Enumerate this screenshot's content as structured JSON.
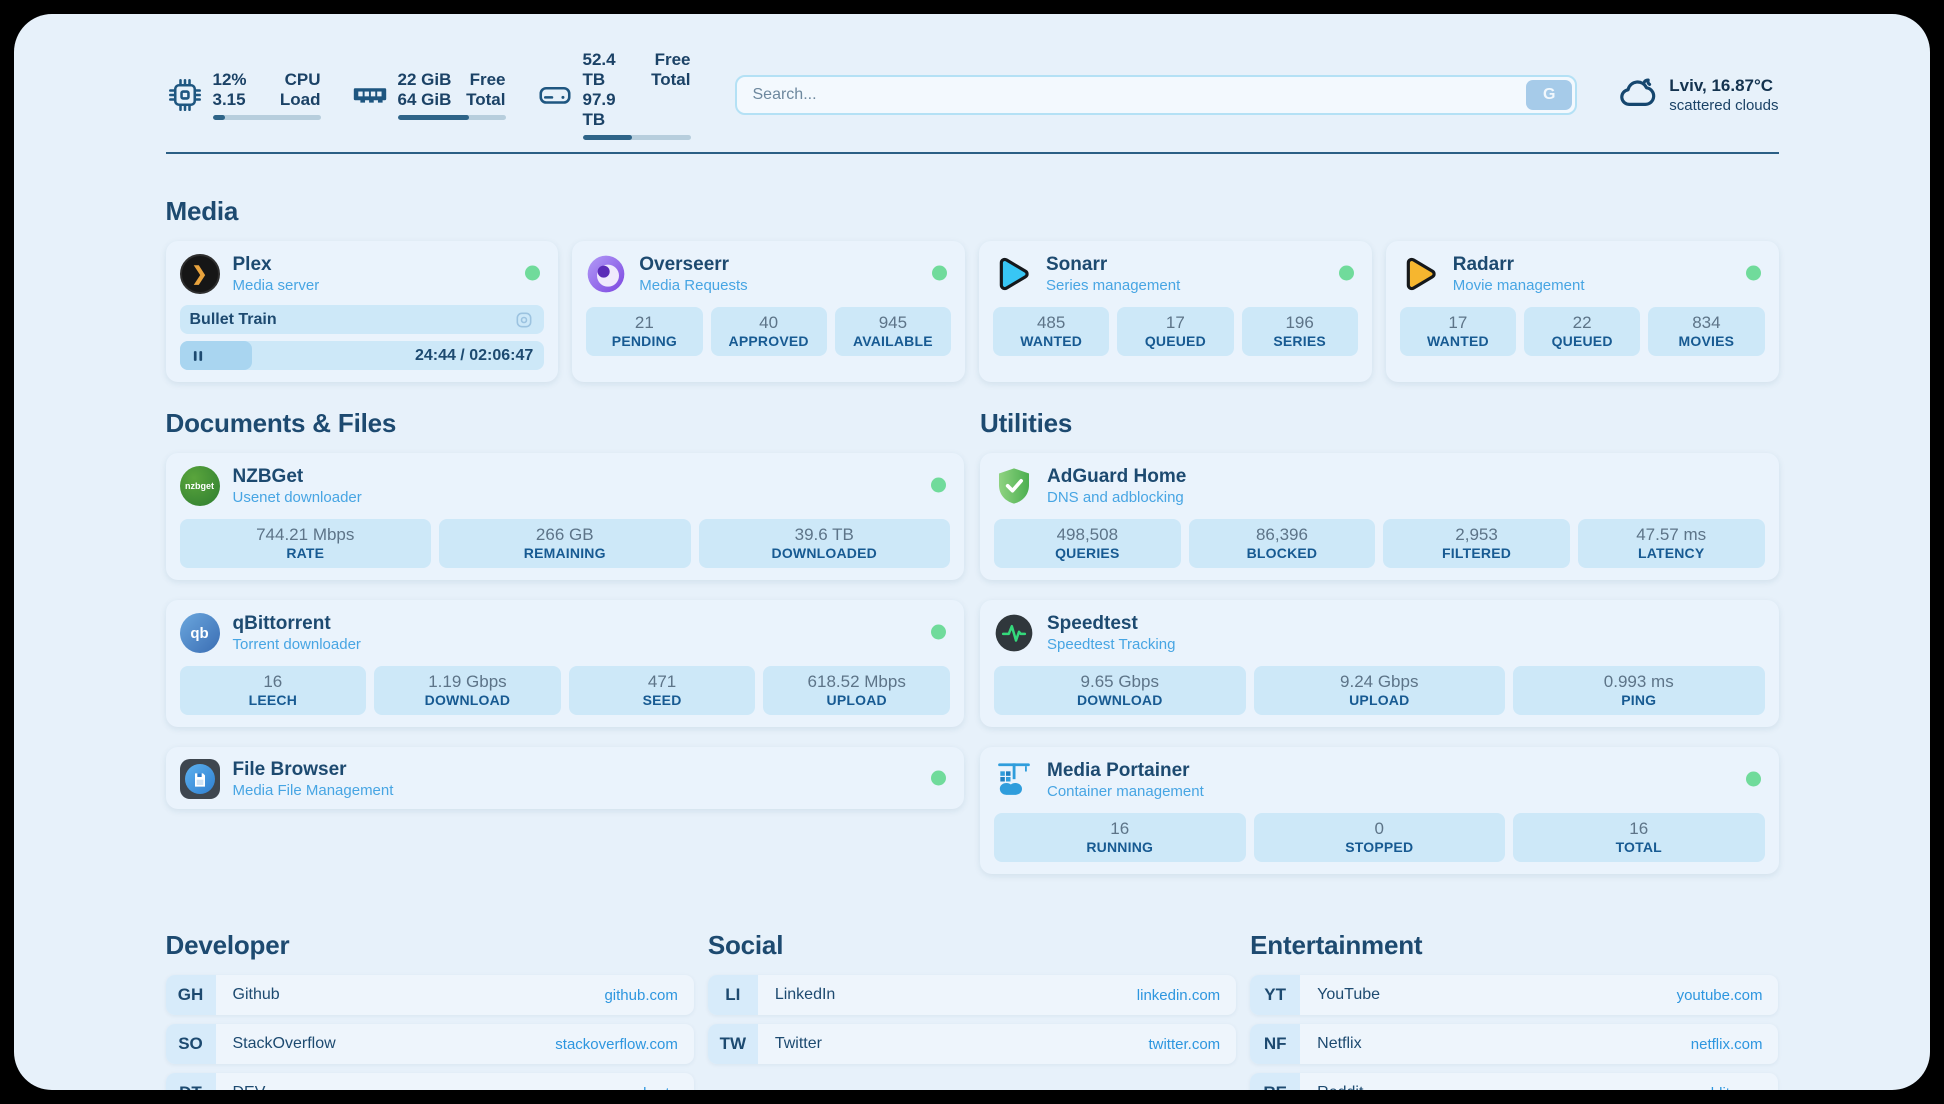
{
  "topbar": {
    "cpu": {
      "value1": "12%",
      "value2": "3.15",
      "label1": "CPU",
      "label2": "Load",
      "progress_pct": 12
    },
    "ram": {
      "value1": "22 GiB",
      "value2": "64 GiB",
      "label1": "Free",
      "label2": "Total",
      "progress_pct": 66
    },
    "disk": {
      "value1": "52.4 TB",
      "value2": "97.9 TB",
      "label1": "Free",
      "label2": "Total",
      "progress_pct": 46
    },
    "search": {
      "placeholder": "Search...",
      "button_label": "G"
    },
    "weather": {
      "location": "Lviv, 16.87°C",
      "condition": "scattered clouds"
    }
  },
  "sections": {
    "media": {
      "title": "Media"
    },
    "documents": {
      "title": "Documents & Files"
    },
    "utilities": {
      "title": "Utilities"
    },
    "developer": {
      "title": "Developer"
    },
    "social": {
      "title": "Social"
    },
    "entertainment": {
      "title": "Entertainment"
    }
  },
  "services": {
    "plex": {
      "title": "Plex",
      "subtitle": "Media server",
      "media_title": "Bullet Train",
      "time": "24:44 / 02:06:47",
      "progress_pct": 20
    },
    "overseerr": {
      "title": "Overseerr",
      "subtitle": "Media Requests",
      "stats": [
        {
          "value": "21",
          "label": "PENDING"
        },
        {
          "value": "40",
          "label": "APPROVED"
        },
        {
          "value": "945",
          "label": "AVAILABLE"
        }
      ]
    },
    "sonarr": {
      "title": "Sonarr",
      "subtitle": "Series management",
      "stats": [
        {
          "value": "485",
          "label": "WANTED"
        },
        {
          "value": "17",
          "label": "QUEUED"
        },
        {
          "value": "196",
          "label": "SERIES"
        }
      ]
    },
    "radarr": {
      "title": "Radarr",
      "subtitle": "Movie management",
      "stats": [
        {
          "value": "17",
          "label": "WANTED"
        },
        {
          "value": "22",
          "label": "QUEUED"
        },
        {
          "value": "834",
          "label": "MOVIES"
        }
      ]
    },
    "nzbget": {
      "title": "NZBGet",
      "subtitle": "Usenet downloader",
      "icon_text": "nzbget",
      "stats": [
        {
          "value": "744.21 Mbps",
          "label": "RATE"
        },
        {
          "value": "266 GB",
          "label": "REMAINING"
        },
        {
          "value": "39.6 TB",
          "label": "DOWNLOADED"
        }
      ]
    },
    "qbittorrent": {
      "title": "qBittorrent",
      "subtitle": "Torrent downloader",
      "icon_text": "qb",
      "stats": [
        {
          "value": "16",
          "label": "LEECH"
        },
        {
          "value": "1.19 Gbps",
          "label": "DOWNLOAD"
        },
        {
          "value": "471",
          "label": "SEED"
        },
        {
          "value": "618.52 Mbps",
          "label": "UPLOAD"
        }
      ]
    },
    "filebrowser": {
      "title": "File Browser",
      "subtitle": "Media File Management"
    },
    "adguard": {
      "title": "AdGuard Home",
      "subtitle": "DNS and adblocking",
      "stats": [
        {
          "value": "498,508",
          "label": "QUERIES"
        },
        {
          "value": "86,396",
          "label": "BLOCKED"
        },
        {
          "value": "2,953",
          "label": "FILTERED"
        },
        {
          "value": "47.57 ms",
          "label": "LATENCY"
        }
      ]
    },
    "speedtest": {
      "title": "Speedtest",
      "subtitle": "Speedtest Tracking",
      "stats": [
        {
          "value": "9.65 Gbps",
          "label": "DOWNLOAD"
        },
        {
          "value": "9.24 Gbps",
          "label": "UPLOAD"
        },
        {
          "value": "0.993 ms",
          "label": "PING"
        }
      ]
    },
    "portainer": {
      "title": "Media Portainer",
      "subtitle": "Container management",
      "stats": [
        {
          "value": "16",
          "label": "RUNNING"
        },
        {
          "value": "0",
          "label": "STOPPED"
        },
        {
          "value": "16",
          "label": "TOTAL"
        }
      ]
    }
  },
  "bookmarks": {
    "developer": [
      {
        "abbr": "GH",
        "name": "Github",
        "url": "github.com"
      },
      {
        "abbr": "SO",
        "name": "StackOverflow",
        "url": "stackoverflow.com"
      },
      {
        "abbr": "DT",
        "name": "DEV",
        "url": "dev.to"
      }
    ],
    "social": [
      {
        "abbr": "LI",
        "name": "LinkedIn",
        "url": "linkedin.com"
      },
      {
        "abbr": "TW",
        "name": "Twitter",
        "url": "twitter.com"
      }
    ],
    "entertainment": [
      {
        "abbr": "YT",
        "name": "YouTube",
        "url": "youtube.com"
      },
      {
        "abbr": "NF",
        "name": "Netflix",
        "url": "netflix.com"
      },
      {
        "abbr": "RE",
        "name": "Reddit",
        "url": "reddit.com"
      }
    ]
  },
  "colors": {
    "accent_blue": "#47a5e3",
    "dark_blue": "#1d4a70",
    "status_green": "#70db9b",
    "stat_bg": "#cde8f8",
    "page_bg": "#e7f1fa"
  }
}
